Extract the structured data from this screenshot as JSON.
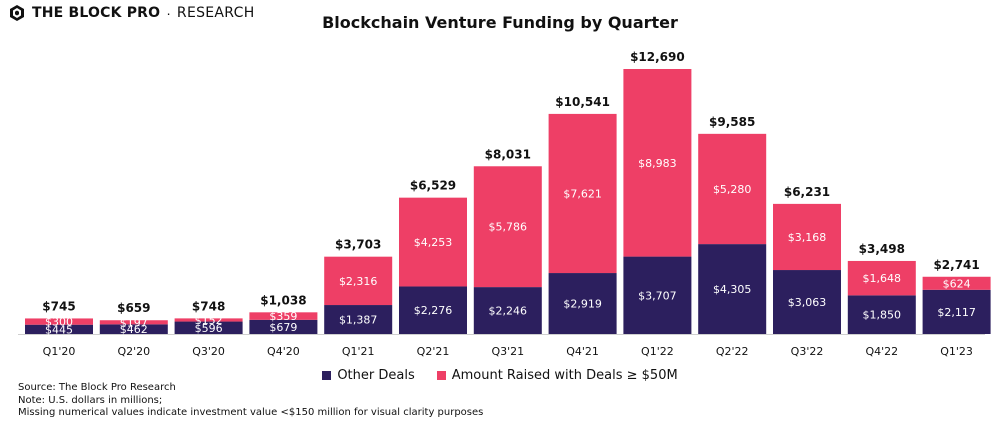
{
  "header": {
    "brand_name": "THE BLOCK PRO",
    "brand_separator": "·",
    "brand_sub": "RESEARCH"
  },
  "colors": {
    "other_deals": "#2c1f5e",
    "large_deals": "#ee3f66",
    "text": "#111111"
  },
  "chart_data": {
    "type": "bar",
    "stacked": true,
    "title": "Blockchain Venture Funding by Quarter",
    "categories": [
      "Q1'20",
      "Q2'20",
      "Q3'20",
      "Q4'20",
      "Q1'21",
      "Q2'21",
      "Q3'21",
      "Q4'21",
      "Q1'22",
      "Q2'22",
      "Q3'22",
      "Q4'22",
      "Q1'23"
    ],
    "series": [
      {
        "name": "Other Deals",
        "values": [
          445,
          462,
          596,
          679,
          1387,
          2276,
          2246,
          2919,
          3707,
          4305,
          3063,
          1850,
          2117
        ],
        "labels": [
          "$445",
          "$462",
          "$596",
          "$679",
          "$1,387",
          "$2,276",
          "$2,246",
          "$2,919",
          "$3,707",
          "$4,305",
          "$3,063",
          "$1,850",
          "$2,117"
        ]
      },
      {
        "name": "Amount Raised with Deals ≥ $50M",
        "values": [
          300,
          197,
          152,
          359,
          2316,
          4253,
          5786,
          7621,
          8983,
          5280,
          3168,
          1648,
          624
        ],
        "labels": [
          "$300",
          "$197",
          "$152",
          "$359",
          "$2,316",
          "$4,253",
          "$5,786",
          "$7,621",
          "$8,983",
          "$5,280",
          "$3,168",
          "$1,648",
          "$624"
        ]
      }
    ],
    "totals": [
      745,
      659,
      748,
      1038,
      3703,
      6529,
      8031,
      10541,
      12690,
      9585,
      6231,
      3498,
      2741
    ],
    "total_labels": [
      "$745",
      "$659",
      "$748",
      "$1,038",
      "$3,703",
      "$6,529",
      "$8,031",
      "$10,541",
      "$12,690",
      "$9,585",
      "$6,231",
      "$3,498",
      "$2,741"
    ],
    "ylim": [
      0,
      12690
    ],
    "grid": false,
    "legend_position": "bottom"
  },
  "footer": {
    "source": "Source: The Block Pro Research",
    "note": "Note: U.S. dollars in millions;",
    "missing": "Missing numerical values indicate investment value <$150 million for visual clarity purposes"
  }
}
